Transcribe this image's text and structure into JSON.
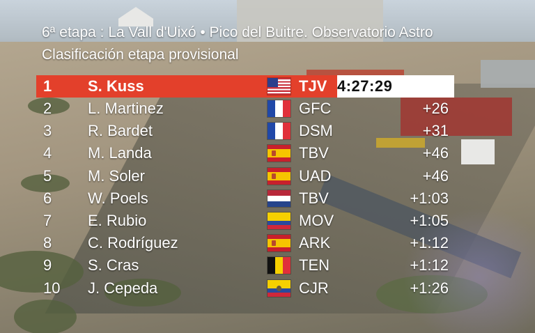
{
  "header": {
    "stage": "6ª etapa : La Vall d'Uixó • Pico del Buitre. Observatorio Astro",
    "classification": "Clasificación etapa provisional"
  },
  "colors": {
    "leader_row": "#e3402b",
    "leader_time_bg": "#ffffff",
    "text": "#ffffff"
  },
  "rows": [
    {
      "pos": "1",
      "name": "S. Kuss",
      "flag": "usa-flag-icon",
      "team": "TJV",
      "time": "4:27:29"
    },
    {
      "pos": "2",
      "name": "L. Martinez",
      "flag": "france-flag-icon",
      "team": "GFC",
      "time": "+26"
    },
    {
      "pos": "3",
      "name": "R. Bardet",
      "flag": "france-flag-icon",
      "team": "DSM",
      "time": "+31"
    },
    {
      "pos": "4",
      "name": "M. Landa",
      "flag": "spain-flag-icon",
      "team": "TBV",
      "time": "+46"
    },
    {
      "pos": "5",
      "name": "M. Soler",
      "flag": "spain-flag-icon",
      "team": "UAD",
      "time": "+46"
    },
    {
      "pos": "6",
      "name": "W. Poels",
      "flag": "netherlands-flag-icon",
      "team": "TBV",
      "time": "+1:03"
    },
    {
      "pos": "7",
      "name": "E. Rubio",
      "flag": "colombia-flag-icon",
      "team": "MOV",
      "time": "+1:05"
    },
    {
      "pos": "8",
      "name": "C. Rodríguez",
      "flag": "spain-flag-icon",
      "team": "ARK",
      "time": "+1:12"
    },
    {
      "pos": "9",
      "name": "S. Cras",
      "flag": "belgium-flag-icon",
      "team": "TEN",
      "time": "+1:12"
    },
    {
      "pos": "10",
      "name": "J. Cepeda",
      "flag": "ecuador-flag-icon",
      "team": "CJR",
      "time": "+1:26"
    }
  ]
}
